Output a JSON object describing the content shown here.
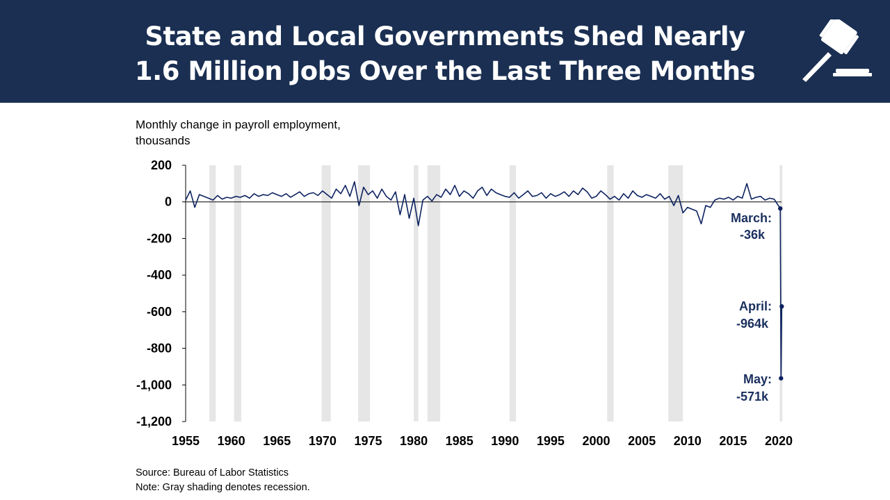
{
  "header": {
    "title_line1": "State and Local Governments Shed Nearly",
    "title_line2": "1.6 Million Jobs Over the Last Three Months",
    "icon": "gavel-icon"
  },
  "colors": {
    "header_bg": "#1a2f52",
    "line": "#0d2260",
    "recession": "#e6e6e6"
  },
  "chart_data": {
    "type": "line",
    "title": "State and Local Governments Shed Nearly 1.6 Million Jobs Over the Last Three Months",
    "ylabel_line1": "Monthly change in payroll employment,",
    "ylabel_line2": "thousands",
    "xlabel": "",
    "xlim": [
      1955,
      2020.5
    ],
    "ylim": [
      -1200,
      200
    ],
    "yticks": [
      200,
      0,
      -200,
      -400,
      -600,
      -800,
      -1000,
      -1200
    ],
    "ytick_labels": [
      "200",
      "0",
      "-200",
      "-400",
      "-600",
      "-800",
      "-1,000",
      "-1,200"
    ],
    "xticks": [
      1955,
      1960,
      1965,
      1970,
      1975,
      1980,
      1985,
      1990,
      1995,
      2000,
      2005,
      2010,
      2015,
      2020
    ],
    "xtick_labels": [
      "1955",
      "1960",
      "1965",
      "1970",
      "1975",
      "1980",
      "1985",
      "1990",
      "1995",
      "2000",
      "2005",
      "2010",
      "2015",
      "2020"
    ],
    "recessions": [
      [
        1957.6,
        1958.3
      ],
      [
        1960.3,
        1961.1
      ],
      [
        1969.9,
        1970.9
      ],
      [
        1973.9,
        1975.2
      ],
      [
        1980.0,
        1980.5
      ],
      [
        1981.5,
        1982.9
      ],
      [
        1990.5,
        1991.2
      ],
      [
        2001.2,
        2001.9
      ],
      [
        2007.9,
        2009.5
      ],
      [
        2020.1,
        2020.4
      ]
    ],
    "series_start": 1955,
    "series_step": 0.5,
    "values": [
      10,
      60,
      -30,
      40,
      30,
      20,
      10,
      35,
      15,
      25,
      20,
      30,
      25,
      35,
      20,
      45,
      30,
      40,
      35,
      50,
      40,
      30,
      45,
      25,
      40,
      55,
      30,
      45,
      50,
      35,
      60,
      40,
      20,
      70,
      45,
      90,
      30,
      110,
      -20,
      80,
      40,
      60,
      20,
      70,
      30,
      10,
      55,
      -70,
      40,
      -90,
      20,
      -130,
      10,
      30,
      5,
      40,
      25,
      70,
      40,
      90,
      30,
      60,
      45,
      20,
      60,
      80,
      35,
      70,
      50,
      40,
      30,
      25,
      50,
      20,
      40,
      60,
      30,
      35,
      50,
      20,
      45,
      30,
      40,
      55,
      30,
      60,
      40,
      75,
      55,
      20,
      30,
      60,
      40,
      15,
      30,
      10,
      45,
      20,
      60,
      35,
      25,
      40,
      30,
      20,
      45,
      15,
      30,
      -20,
      35,
      -60,
      -30,
      -40,
      -50,
      -120,
      -20,
      -30,
      10,
      20,
      15,
      25,
      10,
      30,
      20,
      100,
      15,
      25,
      30,
      10,
      20,
      15
    ],
    "final_points": [
      {
        "x": 2020.17,
        "y": -36
      },
      {
        "x": 2020.25,
        "y": -964
      },
      {
        "x": 2020.33,
        "y": -571
      }
    ],
    "annotations": [
      {
        "label": "March:",
        "value": "-36k"
      },
      {
        "label": "April:",
        "value": "-964k"
      },
      {
        "label": "May:",
        "value": "-571k"
      }
    ],
    "grid": false,
    "legend": "none"
  },
  "footer": {
    "source": "Source:  Bureau of Labor Statistics",
    "note": "Note: Gray shading denotes recession."
  }
}
